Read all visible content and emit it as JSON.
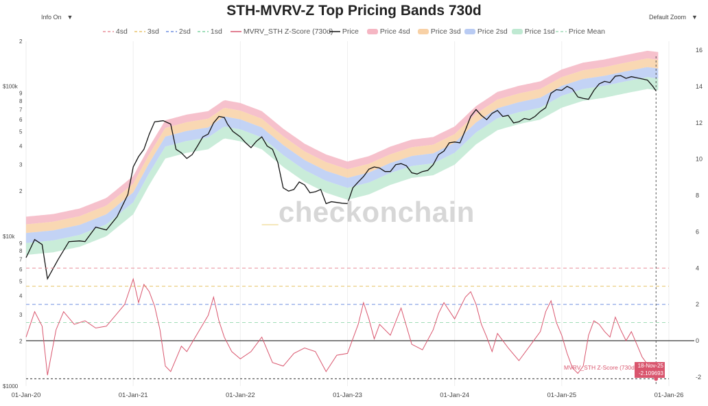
{
  "title": "STH-MVRV-Z Top Pricing Bands 730d",
  "controls": {
    "info": "Info On",
    "zoom": "Default Zoom",
    "caret": "▼"
  },
  "watermark": {
    "bar": "_",
    "text": "checkonchain"
  },
  "legend": [
    {
      "label": "4sd",
      "kind": "dash",
      "color": "#e88f9a"
    },
    {
      "label": "3sd",
      "kind": "dash",
      "color": "#e8c46a"
    },
    {
      "label": "2sd",
      "kind": "dash",
      "color": "#6f8fe0"
    },
    {
      "label": "1sd",
      "kind": "dash",
      "color": "#7ed3a4"
    },
    {
      "label": "MVRV_STH Z-Score (730d)",
      "kind": "line",
      "color": "#d9556d"
    },
    {
      "label": "Price",
      "kind": "line",
      "color": "#111111"
    },
    {
      "label": "Price 4sd",
      "kind": "area",
      "color": "#f5b6c3"
    },
    {
      "label": "Price 3sd",
      "kind": "area",
      "color": "#f8d1a6"
    },
    {
      "label": "Price 2sd",
      "kind": "area",
      "color": "#b9cbf3"
    },
    {
      "label": "Price 1sd",
      "kind": "area",
      "color": "#bfe9d2"
    },
    {
      "label": "Price Mean",
      "kind": "dash",
      "color": "#9fdcb7"
    }
  ],
  "tooltip": {
    "series": "MVRV_STH Z-Score (730d)",
    "date": "18-Nov-25",
    "value": "-2.109693"
  },
  "colors": {
    "price": "#111111",
    "zscore": "#d9556d",
    "band4": "#f5b6c3",
    "band3": "#f8d1a6",
    "band2": "#b9cbf3",
    "band1": "#bfe9d2",
    "zero": "#222222",
    "grid": "#eeeeee"
  },
  "chart_data": {
    "type": "line",
    "title": "STH-MVRV-Z Top Pricing Bands 730d",
    "x_ticks": [
      "01-Jan-20",
      "01-Jan-21",
      "01-Jan-22",
      "01-Jan-23",
      "01-Jan-24",
      "01-Jan-25",
      "01-Jan-26"
    ],
    "x_range": [
      2020.0,
      2026.0
    ],
    "y_left": {
      "scale": "log",
      "range": [
        1000,
        200000
      ],
      "ticks": [
        {
          "v": 2000,
          "label": "2"
        },
        {
          "v": 3000,
          "label": "3"
        },
        {
          "v": 4000,
          "label": "4"
        },
        {
          "v": 5000,
          "label": "5"
        },
        {
          "v": 6000,
          "label": "6"
        },
        {
          "v": 7000,
          "label": "7"
        },
        {
          "v": 8000,
          "label": "8"
        },
        {
          "v": 9000,
          "label": "9"
        },
        {
          "v": 10000,
          "label": "$10k"
        },
        {
          "v": 20000,
          "label": "2"
        },
        {
          "v": 30000,
          "label": "3"
        },
        {
          "v": 40000,
          "label": "4"
        },
        {
          "v": 50000,
          "label": "5"
        },
        {
          "v": 60000,
          "label": "6"
        },
        {
          "v": 70000,
          "label": "7"
        },
        {
          "v": 80000,
          "label": "8"
        },
        {
          "v": 90000,
          "label": "9"
        },
        {
          "v": 100000,
          "label": "$100k"
        },
        {
          "v": 200000,
          "label": "2"
        },
        {
          "v": 1000,
          "label": "$1000"
        }
      ]
    },
    "y_right": {
      "range": [
        -2.5,
        16.5
      ],
      "ticks": [
        -2,
        0,
        2,
        4,
        6,
        8,
        10,
        12,
        14,
        16
      ]
    },
    "sd_levels": [
      {
        "name": "4sd",
        "value": 4
      },
      {
        "name": "3sd",
        "value": 3
      },
      {
        "name": "2sd",
        "value": 2
      },
      {
        "name": "1sd",
        "value": 1
      }
    ],
    "price_mean": {
      "t": [
        2020.0,
        2020.25,
        2020.5,
        2020.75,
        2021.0,
        2021.15,
        2021.3,
        2021.5,
        2021.7,
        2021.85,
        2022.0,
        2022.2,
        2022.4,
        2022.6,
        2022.8,
        2023.0,
        2023.2,
        2023.4,
        2023.6,
        2023.8,
        2024.0,
        2024.2,
        2024.4,
        2024.6,
        2024.8,
        2025.0,
        2025.2,
        2025.4,
        2025.6,
        2025.8,
        2025.9
      ],
      "v": [
        7500,
        7800,
        8500,
        10000,
        14000,
        22000,
        33000,
        36000,
        38000,
        45000,
        43000,
        38000,
        29000,
        23000,
        19500,
        17500,
        19000,
        22000,
        24500,
        25500,
        30000,
        41000,
        51000,
        56000,
        60000,
        72000,
        80000,
        84000,
        90000,
        96000,
        94000
      ]
    },
    "band_multipliers": {
      "sd1": 1.2,
      "sd2": 1.4,
      "sd3": 1.6,
      "sd4": 1.8
    },
    "price": {
      "t": [
        2020.0,
        2020.08,
        2020.15,
        2020.2,
        2020.3,
        2020.4,
        2020.5,
        2020.55,
        2020.65,
        2020.75,
        2020.85,
        2020.95,
        2021.0,
        2021.05,
        2021.1,
        2021.15,
        2021.2,
        2021.28,
        2021.35,
        2021.4,
        2021.45,
        2021.5,
        2021.55,
        2021.6,
        2021.65,
        2021.7,
        2021.75,
        2021.8,
        2021.85,
        2021.88,
        2021.93,
        2022.0,
        2022.05,
        2022.1,
        2022.15,
        2022.2,
        2022.25,
        2022.3,
        2022.35,
        2022.4,
        2022.45,
        2022.5,
        2022.55,
        2022.6,
        2022.65,
        2022.7,
        2022.75,
        2022.8,
        2022.85,
        2022.9,
        2022.95,
        2023.0,
        2023.05,
        2023.1,
        2023.15,
        2023.2,
        2023.25,
        2023.3,
        2023.35,
        2023.4,
        2023.45,
        2023.5,
        2023.55,
        2023.6,
        2023.65,
        2023.7,
        2023.75,
        2023.8,
        2023.85,
        2023.9,
        2023.95,
        2024.0,
        2024.05,
        2024.1,
        2024.15,
        2024.2,
        2024.25,
        2024.3,
        2024.35,
        2024.4,
        2024.45,
        2024.5,
        2024.55,
        2024.6,
        2024.65,
        2024.7,
        2024.75,
        2024.8,
        2024.85,
        2024.9,
        2024.95,
        2025.0,
        2025.05,
        2025.1,
        2025.15,
        2025.2,
        2025.25,
        2025.3,
        2025.35,
        2025.4,
        2025.45,
        2025.5,
        2025.55,
        2025.6,
        2025.65,
        2025.7,
        2025.75,
        2025.8,
        2025.85,
        2025.88
      ],
      "v": [
        7200,
        9500,
        8800,
        5200,
        7000,
        9200,
        9300,
        9200,
        11500,
        11000,
        13500,
        19000,
        29000,
        34000,
        38000,
        48000,
        58000,
        59000,
        56000,
        38000,
        36000,
        33000,
        35000,
        40000,
        46000,
        48000,
        57000,
        63000,
        62000,
        56000,
        50000,
        46000,
        42000,
        39000,
        43000,
        46000,
        40000,
        38000,
        31000,
        21000,
        20000,
        20500,
        23000,
        22000,
        19500,
        19800,
        20500,
        16500,
        17000,
        16800,
        16600,
        16500,
        21000,
        23000,
        25000,
        28000,
        29000,
        28500,
        27000,
        27000,
        30000,
        30500,
        29500,
        26500,
        26000,
        27000,
        27500,
        30000,
        35000,
        37000,
        42000,
        42500,
        42000,
        51000,
        63000,
        70000,
        64000,
        60000,
        66000,
        69000,
        63000,
        64000,
        57000,
        58000,
        61000,
        60000,
        63000,
        68000,
        72000,
        90000,
        95000,
        94000,
        100000,
        96000,
        85000,
        83000,
        82000,
        94000,
        104000,
        108000,
        106000,
        117000,
        118000,
        113000,
        116000,
        114000,
        112000,
        110000,
        100000,
        93000
      ]
    },
    "zscore": {
      "t": [
        2020.0,
        2020.08,
        2020.15,
        2020.2,
        2020.28,
        2020.35,
        2020.45,
        2020.55,
        2020.65,
        2020.75,
        2020.85,
        2020.92,
        2021.0,
        2021.05,
        2021.1,
        2021.15,
        2021.2,
        2021.25,
        2021.3,
        2021.35,
        2021.4,
        2021.45,
        2021.5,
        2021.6,
        2021.7,
        2021.75,
        2021.8,
        2021.85,
        2021.92,
        2022.0,
        2022.1,
        2022.2,
        2022.3,
        2022.4,
        2022.5,
        2022.6,
        2022.7,
        2022.8,
        2022.9,
        2023.0,
        2023.1,
        2023.15,
        2023.2,
        2023.25,
        2023.3,
        2023.4,
        2023.5,
        2023.6,
        2023.7,
        2023.8,
        2023.85,
        2023.9,
        2024.0,
        2024.1,
        2024.15,
        2024.2,
        2024.25,
        2024.3,
        2024.35,
        2024.4,
        2024.5,
        2024.6,
        2024.7,
        2024.8,
        2024.85,
        2024.9,
        2024.95,
        2025.0,
        2025.05,
        2025.1,
        2025.15,
        2025.2,
        2025.25,
        2025.3,
        2025.35,
        2025.4,
        2025.45,
        2025.5,
        2025.55,
        2025.6,
        2025.65,
        2025.7,
        2025.75,
        2025.8,
        2025.85,
        2025.88
      ],
      "v": [
        0.2,
        1.6,
        0.8,
        -1.9,
        0.6,
        1.6,
        0.9,
        1.1,
        0.7,
        0.8,
        1.5,
        2.0,
        3.4,
        2.1,
        3.1,
        2.7,
        1.9,
        0.6,
        -1.4,
        -1.7,
        -1.0,
        -0.3,
        -0.6,
        0.4,
        1.4,
        2.4,
        1.1,
        0.2,
        -0.6,
        -1.0,
        -0.6,
        0.2,
        -1.2,
        -1.4,
        -0.7,
        -0.4,
        -0.6,
        -1.7,
        -0.8,
        -0.7,
        0.9,
        2.1,
        1.2,
        0.1,
        0.9,
        0.3,
        1.8,
        -0.2,
        -0.5,
        0.6,
        1.5,
        2.1,
        1.2,
        2.4,
        2.7,
        2.0,
        0.9,
        0.2,
        -0.6,
        0.4,
        -0.4,
        -1.1,
        -0.3,
        0.5,
        1.6,
        2.2,
        1.0,
        0.3,
        -0.7,
        -1.5,
        -1.8,
        -1.4,
        0.3,
        1.1,
        0.9,
        0.5,
        0.2,
        1.3,
        0.6,
        0.0,
        0.5,
        -0.2,
        -0.9,
        -1.3,
        -1.7,
        -2.1
      ]
    }
  }
}
